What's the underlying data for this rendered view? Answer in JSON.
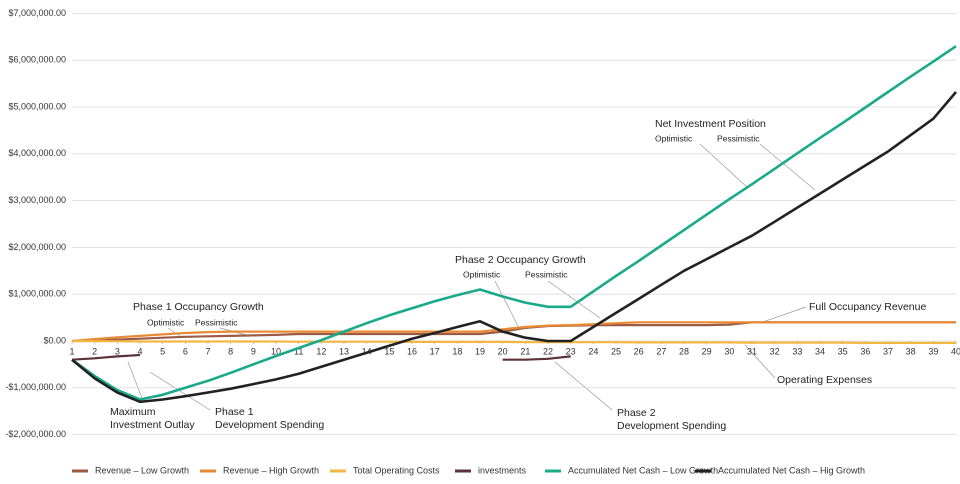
{
  "chart_data": {
    "type": "line",
    "x": [
      1,
      2,
      3,
      4,
      5,
      6,
      7,
      8,
      9,
      10,
      11,
      12,
      13,
      14,
      15,
      16,
      17,
      18,
      19,
      20,
      21,
      22,
      23,
      24,
      25,
      26,
      27,
      28,
      29,
      30,
      31,
      32,
      33,
      34,
      35,
      36,
      37,
      38,
      39,
      40
    ],
    "xlim": [
      1,
      40
    ],
    "xticks": [
      1,
      2,
      3,
      4,
      5,
      6,
      7,
      8,
      9,
      10,
      11,
      12,
      13,
      14,
      15,
      16,
      17,
      18,
      19,
      20,
      21,
      22,
      23,
      24,
      25,
      26,
      27,
      28,
      29,
      30,
      31,
      32,
      33,
      34,
      35,
      36,
      37,
      38,
      39,
      40
    ],
    "ylim": [
      -2000000,
      7000000
    ],
    "yticks": [
      {
        "value": -2000000,
        "label": "-$2,000,000.00"
      },
      {
        "value": -1000000,
        "label": "-$1,000,000.00"
      },
      {
        "value": 0,
        "label": "$0.00"
      },
      {
        "value": 1000000,
        "label": "$1,000,000.00"
      },
      {
        "value": 2000000,
        "label": "$2,000,000.00"
      },
      {
        "value": 3000000,
        "label": "$3,000,000.00"
      },
      {
        "value": 4000000,
        "label": "$4,000,000.00"
      },
      {
        "value": 5000000,
        "label": "$5,000,000.00"
      },
      {
        "value": 6000000,
        "label": "$6,000,000.00"
      },
      {
        "value": 7000000,
        "label": "$7,000,000.00"
      }
    ],
    "grid": true,
    "legend": "bottom",
    "series": [
      {
        "name": "Revenue – Low Growth",
        "color": "#9c5a44",
        "values": [
          0,
          10000,
          30000,
          50000,
          70000,
          90000,
          100000,
          110000,
          120000,
          130000,
          150000,
          150000,
          150000,
          150000,
          150000,
          150000,
          150000,
          150000,
          150000,
          200000,
          280000,
          320000,
          330000,
          340000,
          340000,
          340000,
          340000,
          340000,
          340000,
          350000,
          400000,
          400000,
          400000,
          400000,
          400000,
          400000,
          400000,
          400000,
          400000,
          400000
        ]
      },
      {
        "name": "Revenue – High Growth",
        "color": "#e98a35",
        "values": [
          0,
          40000,
          80000,
          110000,
          140000,
          170000,
          190000,
          200000,
          200000,
          200000,
          200000,
          200000,
          200000,
          200000,
          200000,
          200000,
          200000,
          200000,
          200000,
          250000,
          300000,
          330000,
          340000,
          360000,
          380000,
          400000,
          400000,
          400000,
          400000,
          400000,
          400000,
          400000,
          400000,
          400000,
          400000,
          400000,
          400000,
          400000,
          400000,
          400000
        ]
      },
      {
        "name": "Total Operating Costs",
        "color": "#f2b740",
        "values": [
          0,
          -5000,
          -5000,
          -10000,
          -10000,
          -10000,
          -10000,
          -10000,
          -10000,
          -10000,
          -15000,
          -15000,
          -15000,
          -15000,
          -15000,
          -20000,
          -20000,
          -20000,
          -20000,
          -20000,
          -25000,
          -25000,
          -25000,
          -25000,
          -25000,
          -30000,
          -30000,
          -30000,
          -30000,
          -30000,
          -35000,
          -35000,
          -35000,
          -35000,
          -35000,
          -40000,
          -40000,
          -40000,
          -40000,
          -40000
        ]
      },
      {
        "name": "investments",
        "color": "#5b3239",
        "values": [
          -400000,
          -370000,
          -330000,
          -300000,
          null,
          null,
          null,
          null,
          null,
          null,
          null,
          null,
          null,
          null,
          null,
          null,
          null,
          null,
          null,
          -400000,
          -400000,
          -380000,
          -330000,
          null,
          null,
          null,
          null,
          null,
          null,
          null,
          null,
          null,
          null,
          null,
          null,
          null,
          null,
          null,
          null,
          null
        ]
      },
      {
        "name": "Accumulated Net Cash – Low Growth",
        "color": "#1aa98b",
        "values": [
          -400000,
          -750000,
          -1050000,
          -1250000,
          -1150000,
          -1000000,
          -850000,
          -680000,
          -500000,
          -320000,
          -150000,
          20000,
          200000,
          380000,
          550000,
          700000,
          850000,
          980000,
          1100000,
          950000,
          820000,
          730000,
          730000,
          1060000,
          1390000,
          1710000,
          2040000,
          2370000,
          2700000,
          3030000,
          3350000,
          3680000,
          4010000,
          4340000,
          4660000,
          4990000,
          5320000,
          5650000,
          5970000,
          6300000
        ]
      },
      {
        "name": "Accumulated Net Cash – Hig Growth",
        "color": "#222222",
        "values": [
          -400000,
          -800000,
          -1100000,
          -1300000,
          -1250000,
          -1180000,
          -1100000,
          -1020000,
          -920000,
          -820000,
          -700000,
          -550000,
          -400000,
          -250000,
          -100000,
          50000,
          170000,
          300000,
          420000,
          200000,
          70000,
          0,
          0,
          300000,
          600000,
          900000,
          1200000,
          1500000,
          1750000,
          2000000,
          2250000,
          2550000,
          2850000,
          3150000,
          3450000,
          3750000,
          4050000,
          4400000,
          4750000,
          5320000
        ]
      }
    ],
    "annotations": [
      "Phase 1 Occupancy Growth",
      "Optimistic",
      "Pessimistic",
      "Maximum",
      "Investment Outlay",
      "Phase 1",
      "Development Spending",
      "Phase 2 Occupancy Growth",
      "Optimistic",
      "Pessimistic",
      "Phase 2",
      "Development Spending",
      "Net Investment Position",
      "Optimistic",
      "Pessimistic",
      "Full Occupancy Revenue",
      "Operating Expenses"
    ]
  }
}
